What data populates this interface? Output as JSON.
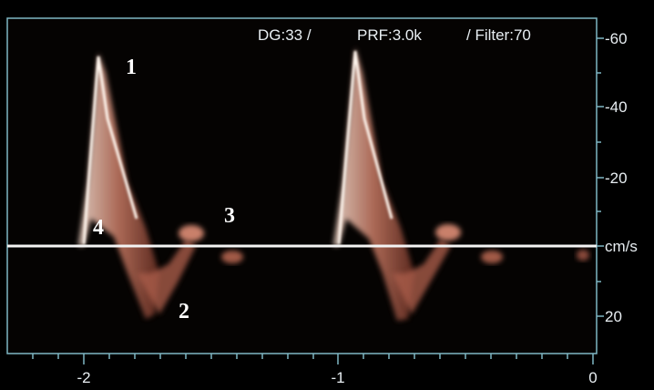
{
  "header": {
    "dg": "DG:33 /",
    "prf": "PRF:3.0k",
    "filter": "/ Filter:70"
  },
  "y_axis": {
    "labels": [
      "-60",
      "-40",
      "-20",
      "cm/s",
      "20"
    ]
  },
  "x_axis": {
    "labels": [
      "-2",
      "-1",
      "0"
    ]
  },
  "annotations": [
    "1",
    "2",
    "3",
    "4"
  ]
}
